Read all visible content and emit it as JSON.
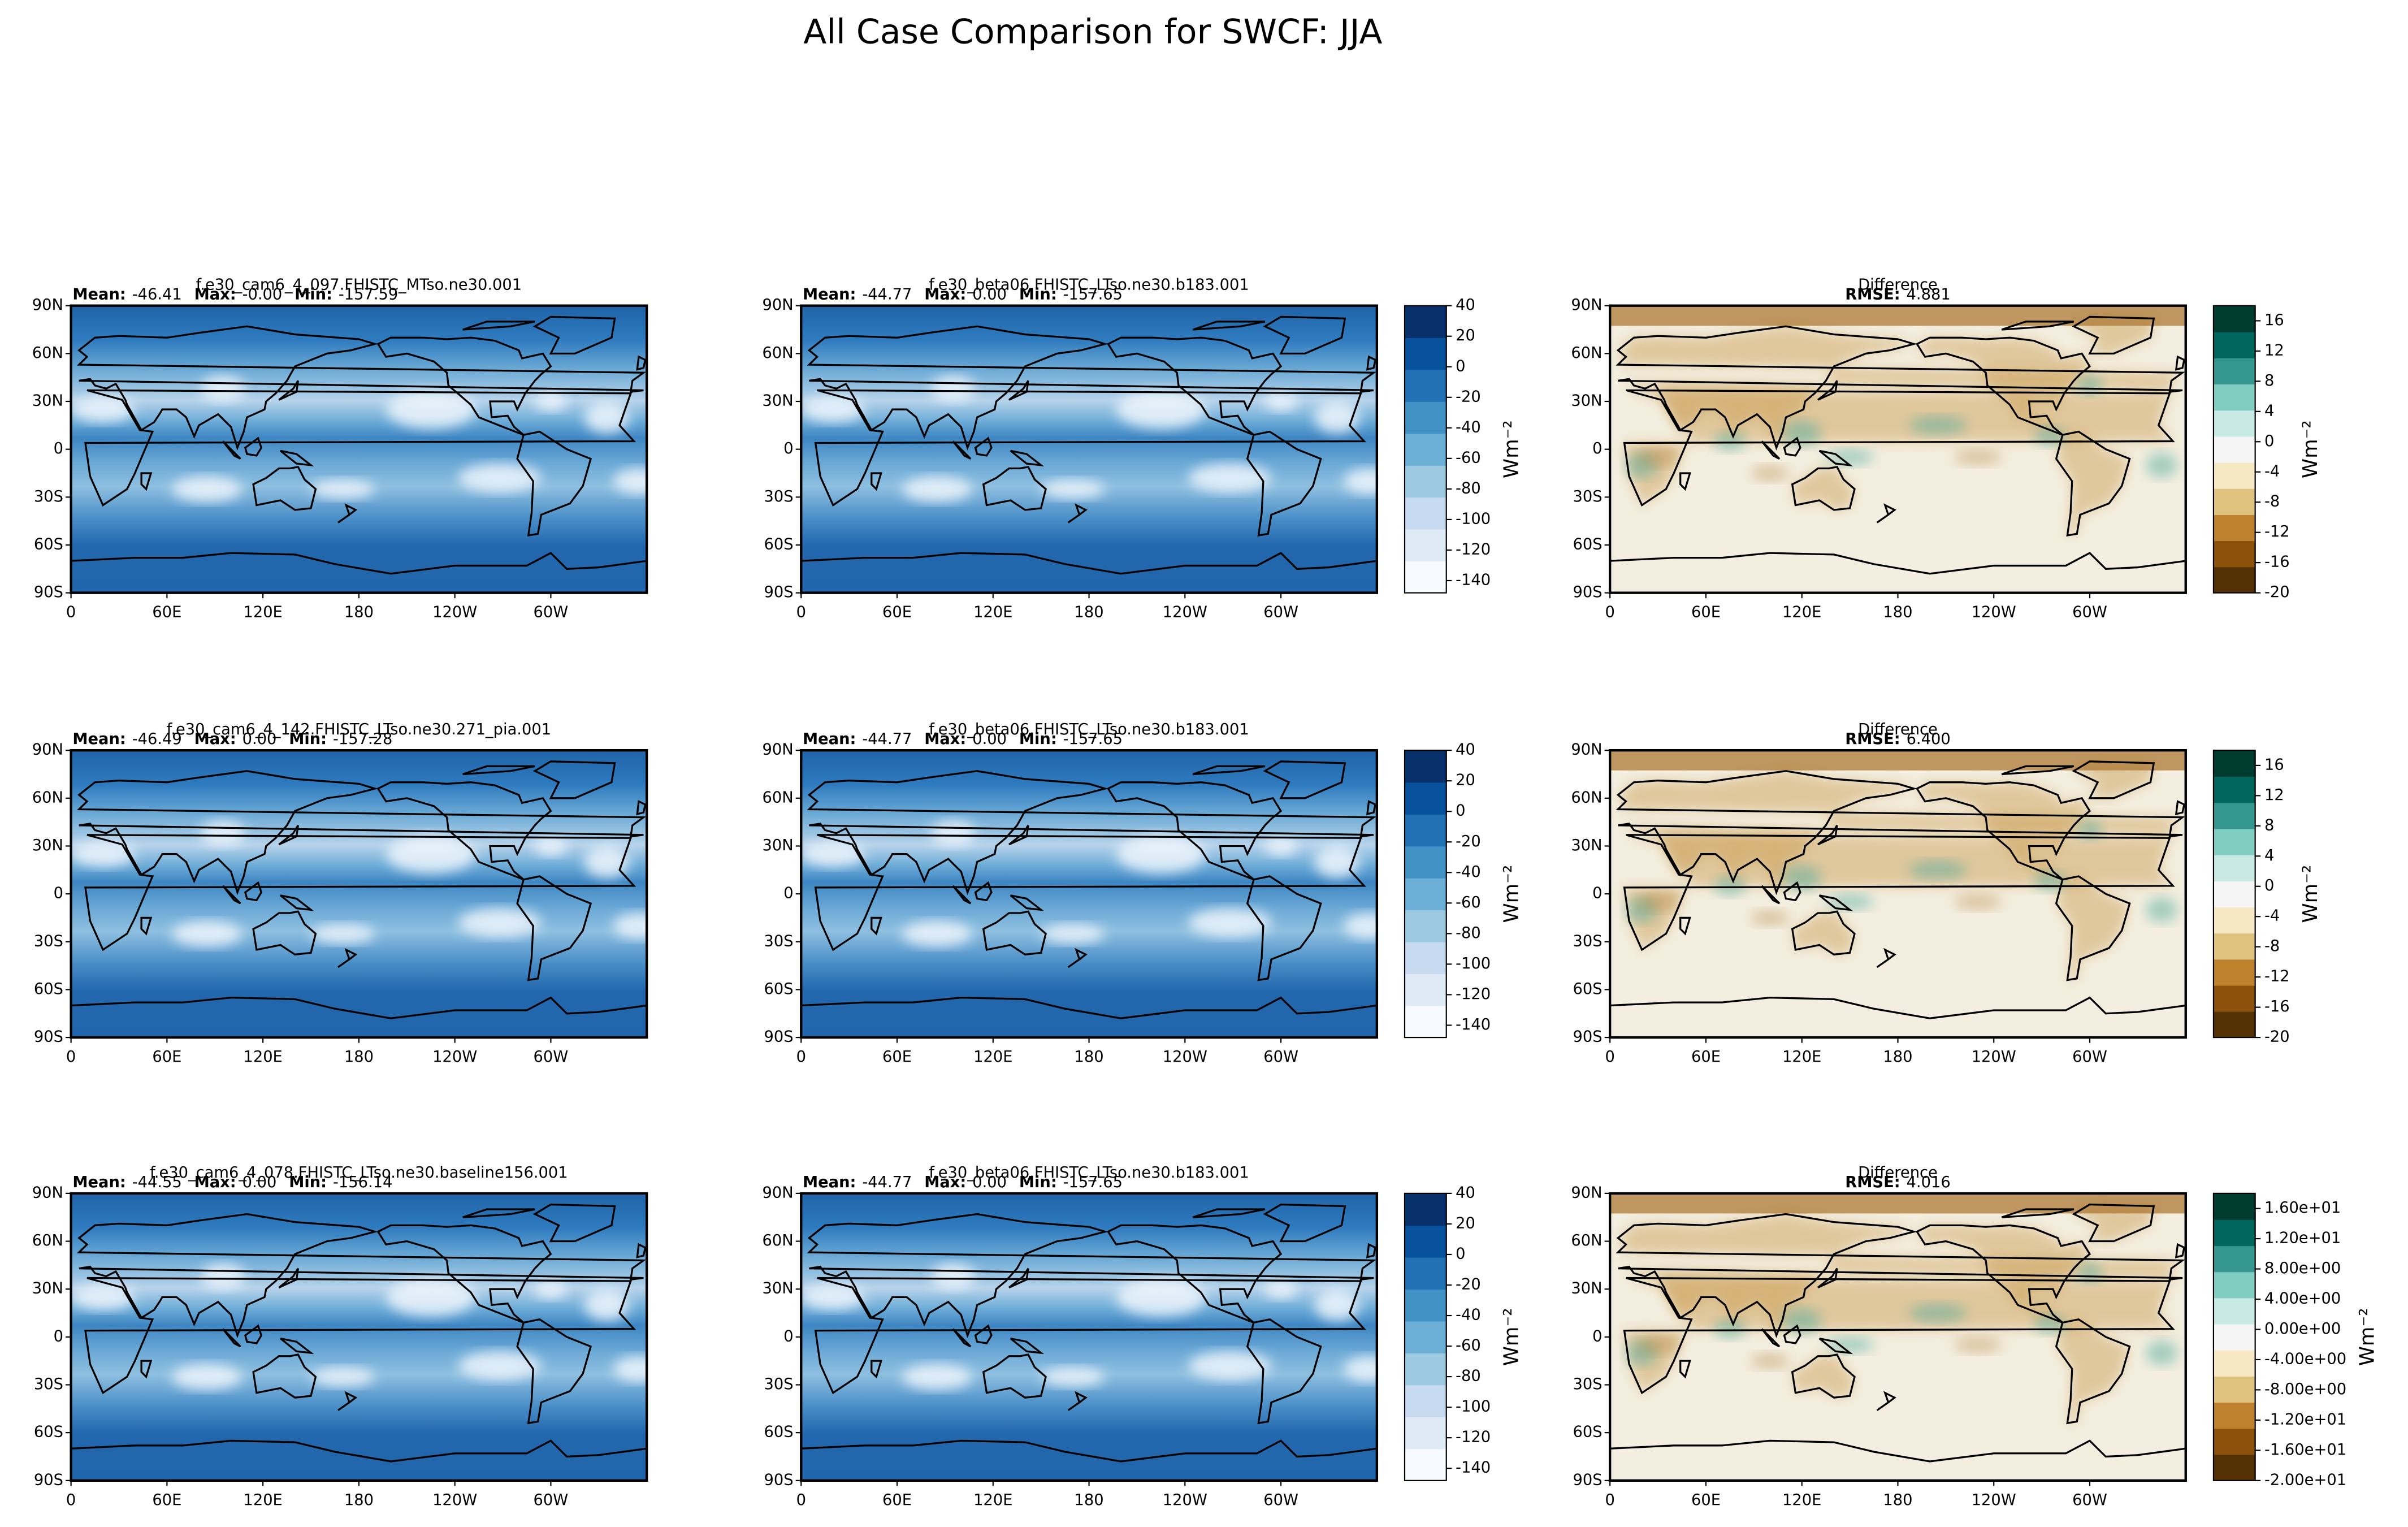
{
  "title": "All Case Comparison for SWCF: JJA",
  "chart_data": [
    {
      "type": "map",
      "title": "f.e30_cam6_4_097.FHISTC_MTso.ne30.001",
      "stats": [
        {
          "name": "Mean:",
          "value": -46.41
        },
        {
          "name": "Max:",
          "value": 0,
          "label": "-0.00"
        },
        {
          "name": "Min:",
          "value": -157.59
        }
      ],
      "xlim": [
        0,
        360
      ],
      "xticks": [
        0,
        {
          "value": 60,
          "label": "60E"
        },
        {
          "value": 120,
          "label": "120E"
        },
        180,
        {
          "value": 240,
          "label": "120W"
        },
        {
          "value": 300,
          "label": "60W"
        }
      ],
      "ylim": [
        -90,
        90
      ],
      "yticks": [
        {
          "value": -90,
          "label": "90S"
        },
        {
          "value": -60,
          "label": "60S"
        },
        {
          "value": -30,
          "label": "30S"
        },
        0,
        {
          "value": 30,
          "label": "30N"
        },
        {
          "value": 60,
          "label": "60N"
        },
        {
          "value": 90,
          "label": "90N"
        }
      ]
    },
    {
      "type": "map",
      "title": "f.e30_beta06.FHISTC_LTso.ne30.b183.001",
      "stats": [
        {
          "name": "Mean:",
          "value": -44.77
        },
        {
          "name": "Max:",
          "value": 0,
          "label": "0.00"
        },
        {
          "name": "Min:",
          "value": -157.65
        }
      ],
      "xlim": [
        0,
        360
      ],
      "xticks": [
        0,
        {
          "value": 60,
          "label": "60E"
        },
        {
          "value": 120,
          "label": "120E"
        },
        180,
        {
          "value": 240,
          "label": "120W"
        },
        {
          "value": 300,
          "label": "60W"
        }
      ],
      "ylim": [
        -90,
        90
      ],
      "yticks": [
        {
          "value": -90,
          "label": "90S"
        },
        {
          "value": -60,
          "label": "60S"
        },
        {
          "value": -30,
          "label": "30S"
        },
        0,
        {
          "value": 30,
          "label": "30N"
        },
        {
          "value": 60,
          "label": "60N"
        },
        {
          "value": 90,
          "label": "90N"
        }
      ],
      "colorbar": {
        "label": "Wm⁻²",
        "clim": [
          -148,
          40
        ],
        "ticks": [
          -140,
          -120,
          -100,
          -80,
          -60,
          -40,
          -20,
          0,
          20,
          40
        ],
        "cmap": [
          "#f7fbff",
          "#deebf7",
          "#c6dbef",
          "#9ecae1",
          "#6baed6",
          "#4292c6",
          "#2171b5",
          "#08519c",
          "#08306b"
        ]
      }
    },
    {
      "type": "diffmap",
      "title": "Difference",
      "stats": [
        {
          "name": "RMSE:",
          "value": 4.881
        }
      ],
      "xlim": [
        0,
        360
      ],
      "xticks": [
        0,
        {
          "value": 60,
          "label": "60E"
        },
        {
          "value": 120,
          "label": "120E"
        },
        180,
        {
          "value": 240,
          "label": "120W"
        },
        {
          "value": 300,
          "label": "60W"
        }
      ],
      "ylim": [
        -90,
        90
      ],
      "yticks": [
        {
          "value": -90,
          "label": "90S"
        },
        {
          "value": -60,
          "label": "60S"
        },
        {
          "value": -30,
          "label": "30S"
        },
        0,
        {
          "value": 30,
          "label": "30N"
        },
        {
          "value": 60,
          "label": "60N"
        },
        {
          "value": 90,
          "label": "90N"
        }
      ],
      "colorbar": {
        "label": "Wm⁻²",
        "clim": [
          -20,
          18
        ],
        "ticks": [
          -20,
          -16,
          -12,
          -8,
          -4,
          0,
          4,
          8,
          12,
          16
        ],
        "cmap": [
          "#543005",
          "#8c510a",
          "#bf812d",
          "#dfc27d",
          "#f6e8c3",
          "#f5f5f5",
          "#c7eae5",
          "#80cdc1",
          "#35978f",
          "#01665e",
          "#003c30"
        ]
      }
    },
    {
      "type": "map",
      "title": "f.e30_cam6_4_142.FHISTC_LTso.ne30.271_pia.001",
      "stats": [
        {
          "name": "Mean:",
          "value": -46.49
        },
        {
          "name": "Max:",
          "value": 0,
          "label": "0.00"
        },
        {
          "name": "Min:",
          "value": -157.28
        }
      ],
      "xlim": [
        0,
        360
      ],
      "xticks": [
        0,
        {
          "value": 60,
          "label": "60E"
        },
        {
          "value": 120,
          "label": "120E"
        },
        180,
        {
          "value": 240,
          "label": "120W"
        },
        {
          "value": 300,
          "label": "60W"
        }
      ],
      "ylim": [
        -90,
        90
      ],
      "yticks": [
        {
          "value": -90,
          "label": "90S"
        },
        {
          "value": -60,
          "label": "60S"
        },
        {
          "value": -30,
          "label": "30S"
        },
        0,
        {
          "value": 30,
          "label": "30N"
        },
        {
          "value": 60,
          "label": "60N"
        },
        {
          "value": 90,
          "label": "90N"
        }
      ]
    },
    {
      "type": "map",
      "title": "f.e30_beta06.FHISTC_LTso.ne30.b183.001",
      "stats": [
        {
          "name": "Mean:",
          "value": -44.77
        },
        {
          "name": "Max:",
          "value": 0,
          "label": "0.00"
        },
        {
          "name": "Min:",
          "value": -157.65
        }
      ],
      "xlim": [
        0,
        360
      ],
      "xticks": [
        0,
        {
          "value": 60,
          "label": "60E"
        },
        {
          "value": 120,
          "label": "120E"
        },
        180,
        {
          "value": 240,
          "label": "120W"
        },
        {
          "value": 300,
          "label": "60W"
        }
      ],
      "ylim": [
        -90,
        90
      ],
      "yticks": [
        {
          "value": -90,
          "label": "90S"
        },
        {
          "value": -60,
          "label": "60S"
        },
        {
          "value": -30,
          "label": "30S"
        },
        0,
        {
          "value": 30,
          "label": "30N"
        },
        {
          "value": 60,
          "label": "60N"
        },
        {
          "value": 90,
          "label": "90N"
        }
      ],
      "colorbar": {
        "label": "Wm⁻²",
        "clim": [
          -148,
          40
        ],
        "ticks": [
          -140,
          -120,
          -100,
          -80,
          -60,
          -40,
          -20,
          0,
          20,
          40
        ],
        "cmap": [
          "#f7fbff",
          "#deebf7",
          "#c6dbef",
          "#9ecae1",
          "#6baed6",
          "#4292c6",
          "#2171b5",
          "#08519c",
          "#08306b"
        ]
      }
    },
    {
      "type": "diffmap",
      "title": "Difference",
      "stats": [
        {
          "name": "RMSE:",
          "value": 6.4,
          "label": "6.400"
        }
      ],
      "xlim": [
        0,
        360
      ],
      "xticks": [
        0,
        {
          "value": 60,
          "label": "60E"
        },
        {
          "value": 120,
          "label": "120E"
        },
        180,
        {
          "value": 240,
          "label": "120W"
        },
        {
          "value": 300,
          "label": "60W"
        }
      ],
      "ylim": [
        -90,
        90
      ],
      "yticks": [
        {
          "value": -90,
          "label": "90S"
        },
        {
          "value": -60,
          "label": "60S"
        },
        {
          "value": -30,
          "label": "30S"
        },
        0,
        {
          "value": 30,
          "label": "30N"
        },
        {
          "value": 60,
          "label": "60N"
        },
        {
          "value": 90,
          "label": "90N"
        }
      ],
      "colorbar": {
        "label": "Wm⁻²",
        "clim": [
          -20,
          18
        ],
        "ticks": [
          -20,
          -16,
          -12,
          -8,
          -4,
          0,
          4,
          8,
          12,
          16
        ],
        "cmap": [
          "#543005",
          "#8c510a",
          "#bf812d",
          "#dfc27d",
          "#f6e8c3",
          "#f5f5f5",
          "#c7eae5",
          "#80cdc1",
          "#35978f",
          "#01665e",
          "#003c30"
        ]
      }
    },
    {
      "type": "map",
      "title": "f.e30_cam6_4_078.FHISTC_LTso.ne30.baseline156.001",
      "stats": [
        {
          "name": "Mean:",
          "value": -44.55
        },
        {
          "name": "Max:",
          "value": 0,
          "label": "0.00"
        },
        {
          "name": "Min:",
          "value": -156.14
        }
      ],
      "xlim": [
        0,
        360
      ],
      "xticks": [
        0,
        {
          "value": 60,
          "label": "60E"
        },
        {
          "value": 120,
          "label": "120E"
        },
        180,
        {
          "value": 240,
          "label": "120W"
        },
        {
          "value": 300,
          "label": "60W"
        }
      ],
      "ylim": [
        -90,
        90
      ],
      "yticks": [
        {
          "value": -90,
          "label": "90S"
        },
        {
          "value": -60,
          "label": "60S"
        },
        {
          "value": -30,
          "label": "30S"
        },
        0,
        {
          "value": 30,
          "label": "30N"
        },
        {
          "value": 60,
          "label": "60N"
        },
        {
          "value": 90,
          "label": "90N"
        }
      ]
    },
    {
      "type": "map",
      "title": "f.e30_beta06.FHISTC_LTso.ne30.b183.001",
      "stats": [
        {
          "name": "Mean:",
          "value": -44.77
        },
        {
          "name": "Max:",
          "value": 0,
          "label": "0.00"
        },
        {
          "name": "Min:",
          "value": -157.65
        }
      ],
      "xlim": [
        0,
        360
      ],
      "xticks": [
        0,
        {
          "value": 60,
          "label": "60E"
        },
        {
          "value": 120,
          "label": "120E"
        },
        180,
        {
          "value": 240,
          "label": "120W"
        },
        {
          "value": 300,
          "label": "60W"
        }
      ],
      "ylim": [
        -90,
        90
      ],
      "yticks": [
        {
          "value": -90,
          "label": "90S"
        },
        {
          "value": -60,
          "label": "60S"
        },
        {
          "value": -30,
          "label": "30S"
        },
        0,
        {
          "value": 30,
          "label": "30N"
        },
        {
          "value": 60,
          "label": "60N"
        },
        {
          "value": 90,
          "label": "90N"
        }
      ],
      "colorbar": {
        "label": "Wm⁻²",
        "clim": [
          -148,
          40
        ],
        "ticks": [
          -140,
          -120,
          -100,
          -80,
          -60,
          -40,
          -20,
          0,
          20,
          40
        ],
        "cmap": [
          "#f7fbff",
          "#deebf7",
          "#c6dbef",
          "#9ecae1",
          "#6baed6",
          "#4292c6",
          "#2171b5",
          "#08519c",
          "#08306b"
        ]
      }
    },
    {
      "type": "diffmap",
      "title": "Difference",
      "stats": [
        {
          "name": "RMSE:",
          "value": 4.016
        }
      ],
      "xlim": [
        0,
        360
      ],
      "xticks": [
        0,
        {
          "value": 60,
          "label": "60E"
        },
        {
          "value": 120,
          "label": "120E"
        },
        180,
        {
          "value": 240,
          "label": "120W"
        },
        {
          "value": 300,
          "label": "60W"
        }
      ],
      "ylim": [
        -90,
        90
      ],
      "yticks": [
        {
          "value": -90,
          "label": "90S"
        },
        {
          "value": -60,
          "label": "60S"
        },
        {
          "value": -30,
          "label": "30S"
        },
        0,
        {
          "value": 30,
          "label": "30N"
        },
        {
          "value": 60,
          "label": "60N"
        },
        {
          "value": 90,
          "label": "90N"
        }
      ],
      "colorbar": {
        "label": "Wm⁻²",
        "clim": [
          -20,
          18
        ],
        "ticks": [
          {
            "value": -20,
            "label": "-2.00e+01"
          },
          {
            "value": -16,
            "label": "-1.60e+01"
          },
          {
            "value": -12,
            "label": "-1.20e+01"
          },
          {
            "value": -8,
            "label": "-8.00e+00"
          },
          {
            "value": -4,
            "label": "-4.00e+00"
          },
          {
            "value": 0,
            "label": "0.00e+00"
          },
          {
            "value": 4,
            "label": "4.00e+00"
          },
          {
            "value": 8,
            "label": "8.00e+00"
          },
          {
            "value": 12,
            "label": "1.20e+01"
          },
          {
            "value": 16,
            "label": "1.60e+01"
          }
        ],
        "cmap": [
          "#543005",
          "#8c510a",
          "#bf812d",
          "#dfc27d",
          "#f6e8c3",
          "#f5f5f5",
          "#c7eae5",
          "#80cdc1",
          "#35978f",
          "#01665e",
          "#003c30"
        ]
      }
    }
  ]
}
